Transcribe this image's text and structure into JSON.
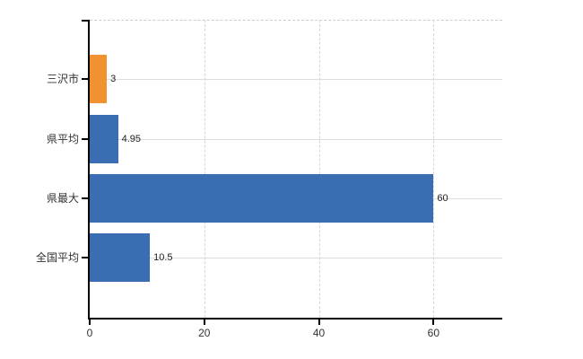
{
  "chart_data": {
    "type": "bar",
    "orientation": "horizontal",
    "title": "",
    "xlabel": "",
    "ylabel": "",
    "categories": [
      "三沢市",
      "県平均",
      "県最大",
      "全国平均"
    ],
    "values": [
      3,
      4.95,
      60,
      10.5
    ],
    "value_labels": [
      "3",
      "4.95",
      "60",
      "10.5"
    ],
    "bar_colors": [
      "#F0922F",
      "#3B6DB2",
      "#3B6DB2",
      "#3B6DB2"
    ],
    "xticks": [
      0,
      20,
      40,
      60
    ],
    "xtick_labels": [
      "0",
      "20",
      "40",
      "60"
    ],
    "xlim": [
      0,
      72
    ],
    "grid": true,
    "legend": false
  },
  "style": {
    "background": "#ffffff",
    "axis_color": "#000000",
    "grid_color_horizontal": "#dcdedc",
    "grid_color_vertical": "#d4d4da",
    "top_border_color": "#cccccc",
    "text_color": "#333333",
    "bar_blue": "#3B6DB2",
    "bar_orange": "#F0922F"
  }
}
